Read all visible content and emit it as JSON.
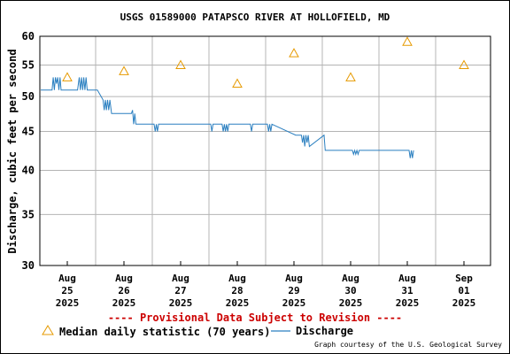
{
  "chart_data": {
    "type": "line",
    "title": "USGS 01589000 PATAPSCO RIVER AT HOLLOFIELD, MD",
    "ylabel": "Discharge, cubic feet per second",
    "xlabel": "",
    "y_scale": "log",
    "ylim": [
      30,
      60
    ],
    "y_ticks": [
      30,
      35,
      40,
      45,
      50,
      55,
      60
    ],
    "x_ticks": [
      {
        "line1": "Aug",
        "line2": "25",
        "line3": "2025"
      },
      {
        "line1": "Aug",
        "line2": "26",
        "line3": "2025"
      },
      {
        "line1": "Aug",
        "line2": "27",
        "line3": "2025"
      },
      {
        "line1": "Aug",
        "line2": "28",
        "line3": "2025"
      },
      {
        "line1": "Aug",
        "line2": "29",
        "line3": "2025"
      },
      {
        "line1": "Aug",
        "line2": "30",
        "line3": "2025"
      },
      {
        "line1": "Aug",
        "line2": "31",
        "line3": "2025"
      },
      {
        "line1": "Sep",
        "line2": "01",
        "line3": "2025"
      }
    ],
    "grid": true,
    "series": [
      {
        "name": "Median daily statistic (70 years)",
        "marker": "triangle",
        "color": "#e69a00",
        "x": [
          "2025-08-25",
          "2025-08-26",
          "2025-08-27",
          "2025-08-28",
          "2025-08-29",
          "2025-08-30",
          "2025-08-31",
          "2025-09-01"
        ],
        "values": [
          53,
          54,
          55,
          52,
          57,
          53,
          59,
          55
        ]
      },
      {
        "name": "Discharge",
        "marker": "line",
        "color": "#2a7fc0",
        "x_day_offset": [
          0.0,
          0.2,
          0.22,
          0.24,
          0.26,
          0.28,
          0.3,
          0.32,
          0.34,
          0.36,
          0.5,
          0.65,
          0.68,
          0.7,
          0.72,
          0.74,
          0.76,
          0.78,
          0.8,
          0.82,
          1.0,
          1.1,
          1.12,
          1.14,
          1.16,
          1.18,
          1.2,
          1.22,
          1.25,
          1.6,
          1.62,
          1.64,
          1.66,
          1.68,
          2.0,
          2.02,
          2.04,
          2.06,
          2.08,
          2.5,
          3.0,
          3.02,
          3.04,
          3.2,
          3.22,
          3.24,
          3.26,
          3.28,
          3.3,
          3.32,
          3.7,
          3.72,
          3.74,
          4.0,
          4.02,
          4.04,
          4.06,
          4.08,
          4.5,
          4.6,
          4.62,
          4.64,
          4.66,
          4.68,
          4.7,
          4.72,
          4.74,
          5.0,
          5.02,
          5.04,
          5.06,
          5.5,
          5.52,
          5.54,
          5.56,
          5.58,
          5.6,
          5.62,
          6.0,
          6.02,
          6.04,
          6.06,
          6.08,
          6.1,
          6.5,
          6.52,
          6.54,
          6.56,
          6.58
        ],
        "values": [
          51,
          51,
          53,
          51,
          53,
          52,
          53,
          51,
          53,
          51,
          51,
          51,
          53,
          51,
          53,
          51,
          53,
          51,
          53,
          51,
          51,
          49.5,
          48,
          49.5,
          48,
          49.5,
          48,
          49.5,
          47.5,
          47.5,
          48,
          46,
          47.5,
          46,
          46,
          45,
          46,
          45,
          46,
          46,
          46,
          45,
          46,
          46,
          45,
          46,
          45,
          46,
          45,
          46,
          46,
          45,
          46,
          46,
          45,
          46,
          45,
          46,
          44.5,
          44.5,
          43.5,
          44.5,
          43,
          44.5,
          43.5,
          44.5,
          43,
          44.5,
          42.5,
          42.5,
          42.5,
          42.5,
          42,
          42.5,
          42,
          42.5,
          42,
          42.5,
          42.5,
          42.5,
          42.5,
          42.5,
          42.5,
          42.5,
          42.5,
          41.5,
          42.5,
          41.5,
          42.5
        ]
      }
    ]
  },
  "provisional_text": "---- Provisional Data Subject to Revision ----",
  "legend": {
    "median_label": "Median daily statistic (70 years)",
    "discharge_label": "Discharge"
  },
  "credit": "Graph courtesy of the U.S. Geological Survey",
  "colors": {
    "grid": "#b4b4b4",
    "median": "#e69a00",
    "discharge": "#2a7fc0",
    "provisional": "#cc0000"
  }
}
